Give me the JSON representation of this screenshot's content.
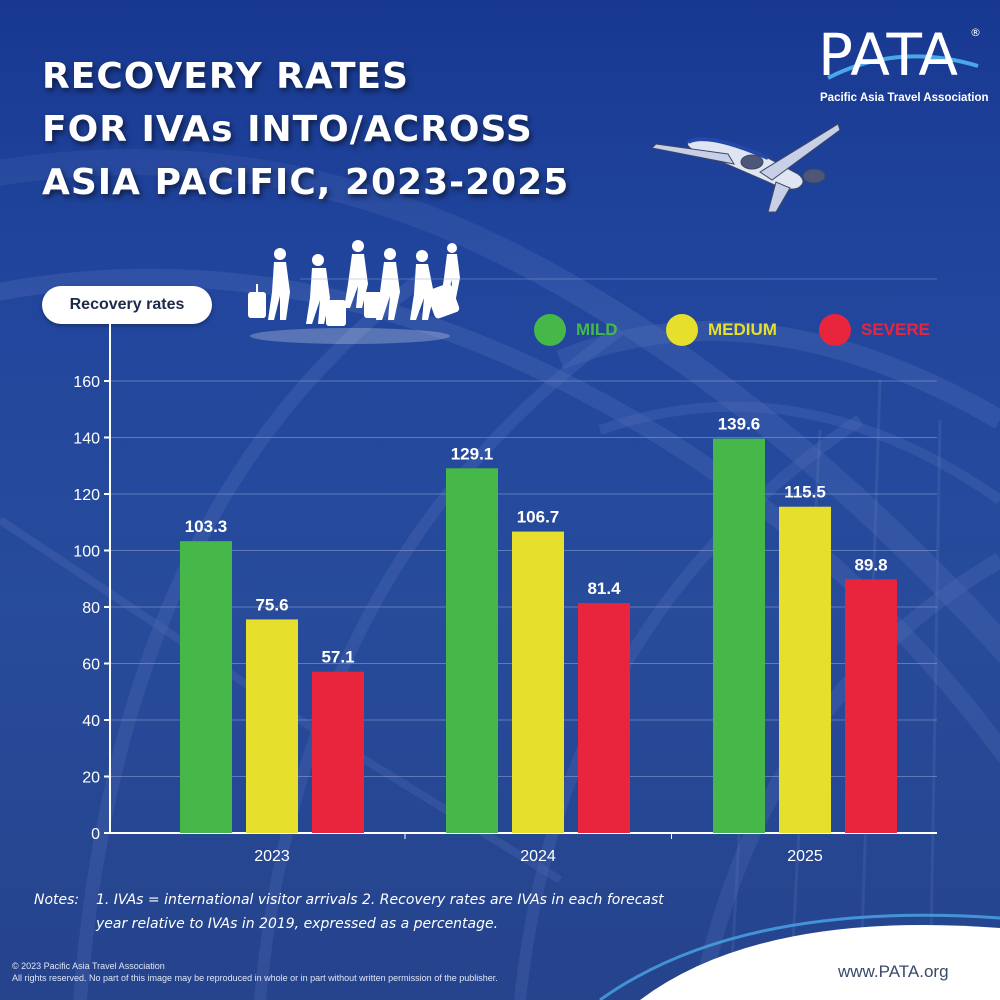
{
  "header": {
    "title_lines": [
      "RECOVERY RATES",
      "FOR IVAs INTO/ACROSS",
      "ASIA PACIFIC, 2023-2025"
    ]
  },
  "logo": {
    "name": "PATA",
    "registered_mark": "®",
    "subtitle": "Pacific Asia Travel Association"
  },
  "icons": {
    "plane": "airplane-icon",
    "travelers": "travelers-silhouette-icon",
    "legend_marker": "circle-marker"
  },
  "colors": {
    "mild": "#46b849",
    "medium": "#e6df2c",
    "severe": "#e8253d"
  },
  "chart_data": {
    "type": "bar",
    "title": "RECOVERY RATES FOR IVAs INTO/ACROSS ASIA PACIFIC, 2023-2025",
    "ylabel": "Recovery rates",
    "xlabel": "",
    "categories": [
      "2023",
      "2024",
      "2025"
    ],
    "series": [
      {
        "name": "MILD",
        "values": [
          103.3,
          129.1,
          139.6
        ]
      },
      {
        "name": "MEDIUM",
        "values": [
          75.6,
          106.7,
          115.5
        ]
      },
      {
        "name": "SEVERE",
        "values": [
          57.1,
          81.4,
          89.8
        ]
      }
    ],
    "ylim": [
      0,
      160
    ],
    "yticks": [
      0,
      20,
      40,
      60,
      80,
      100,
      120,
      140,
      160
    ],
    "grid": true,
    "legend_position": "top-right",
    "data_labels": true
  },
  "footer": {
    "notes_label": "Notes:",
    "notes_text": "1. IVAs = international visitor arrivals 2. Recovery rates are IVAs in each forecast year relative to IVAs in 2019, expressed as a percentage.",
    "copyright_lines": [
      "© 2023 Pacific Asia Travel Association",
      "All rights reserved. No part of this image may be reproduced in whole or in part without written permission of the publisher."
    ],
    "website": "www.PATA.org"
  }
}
